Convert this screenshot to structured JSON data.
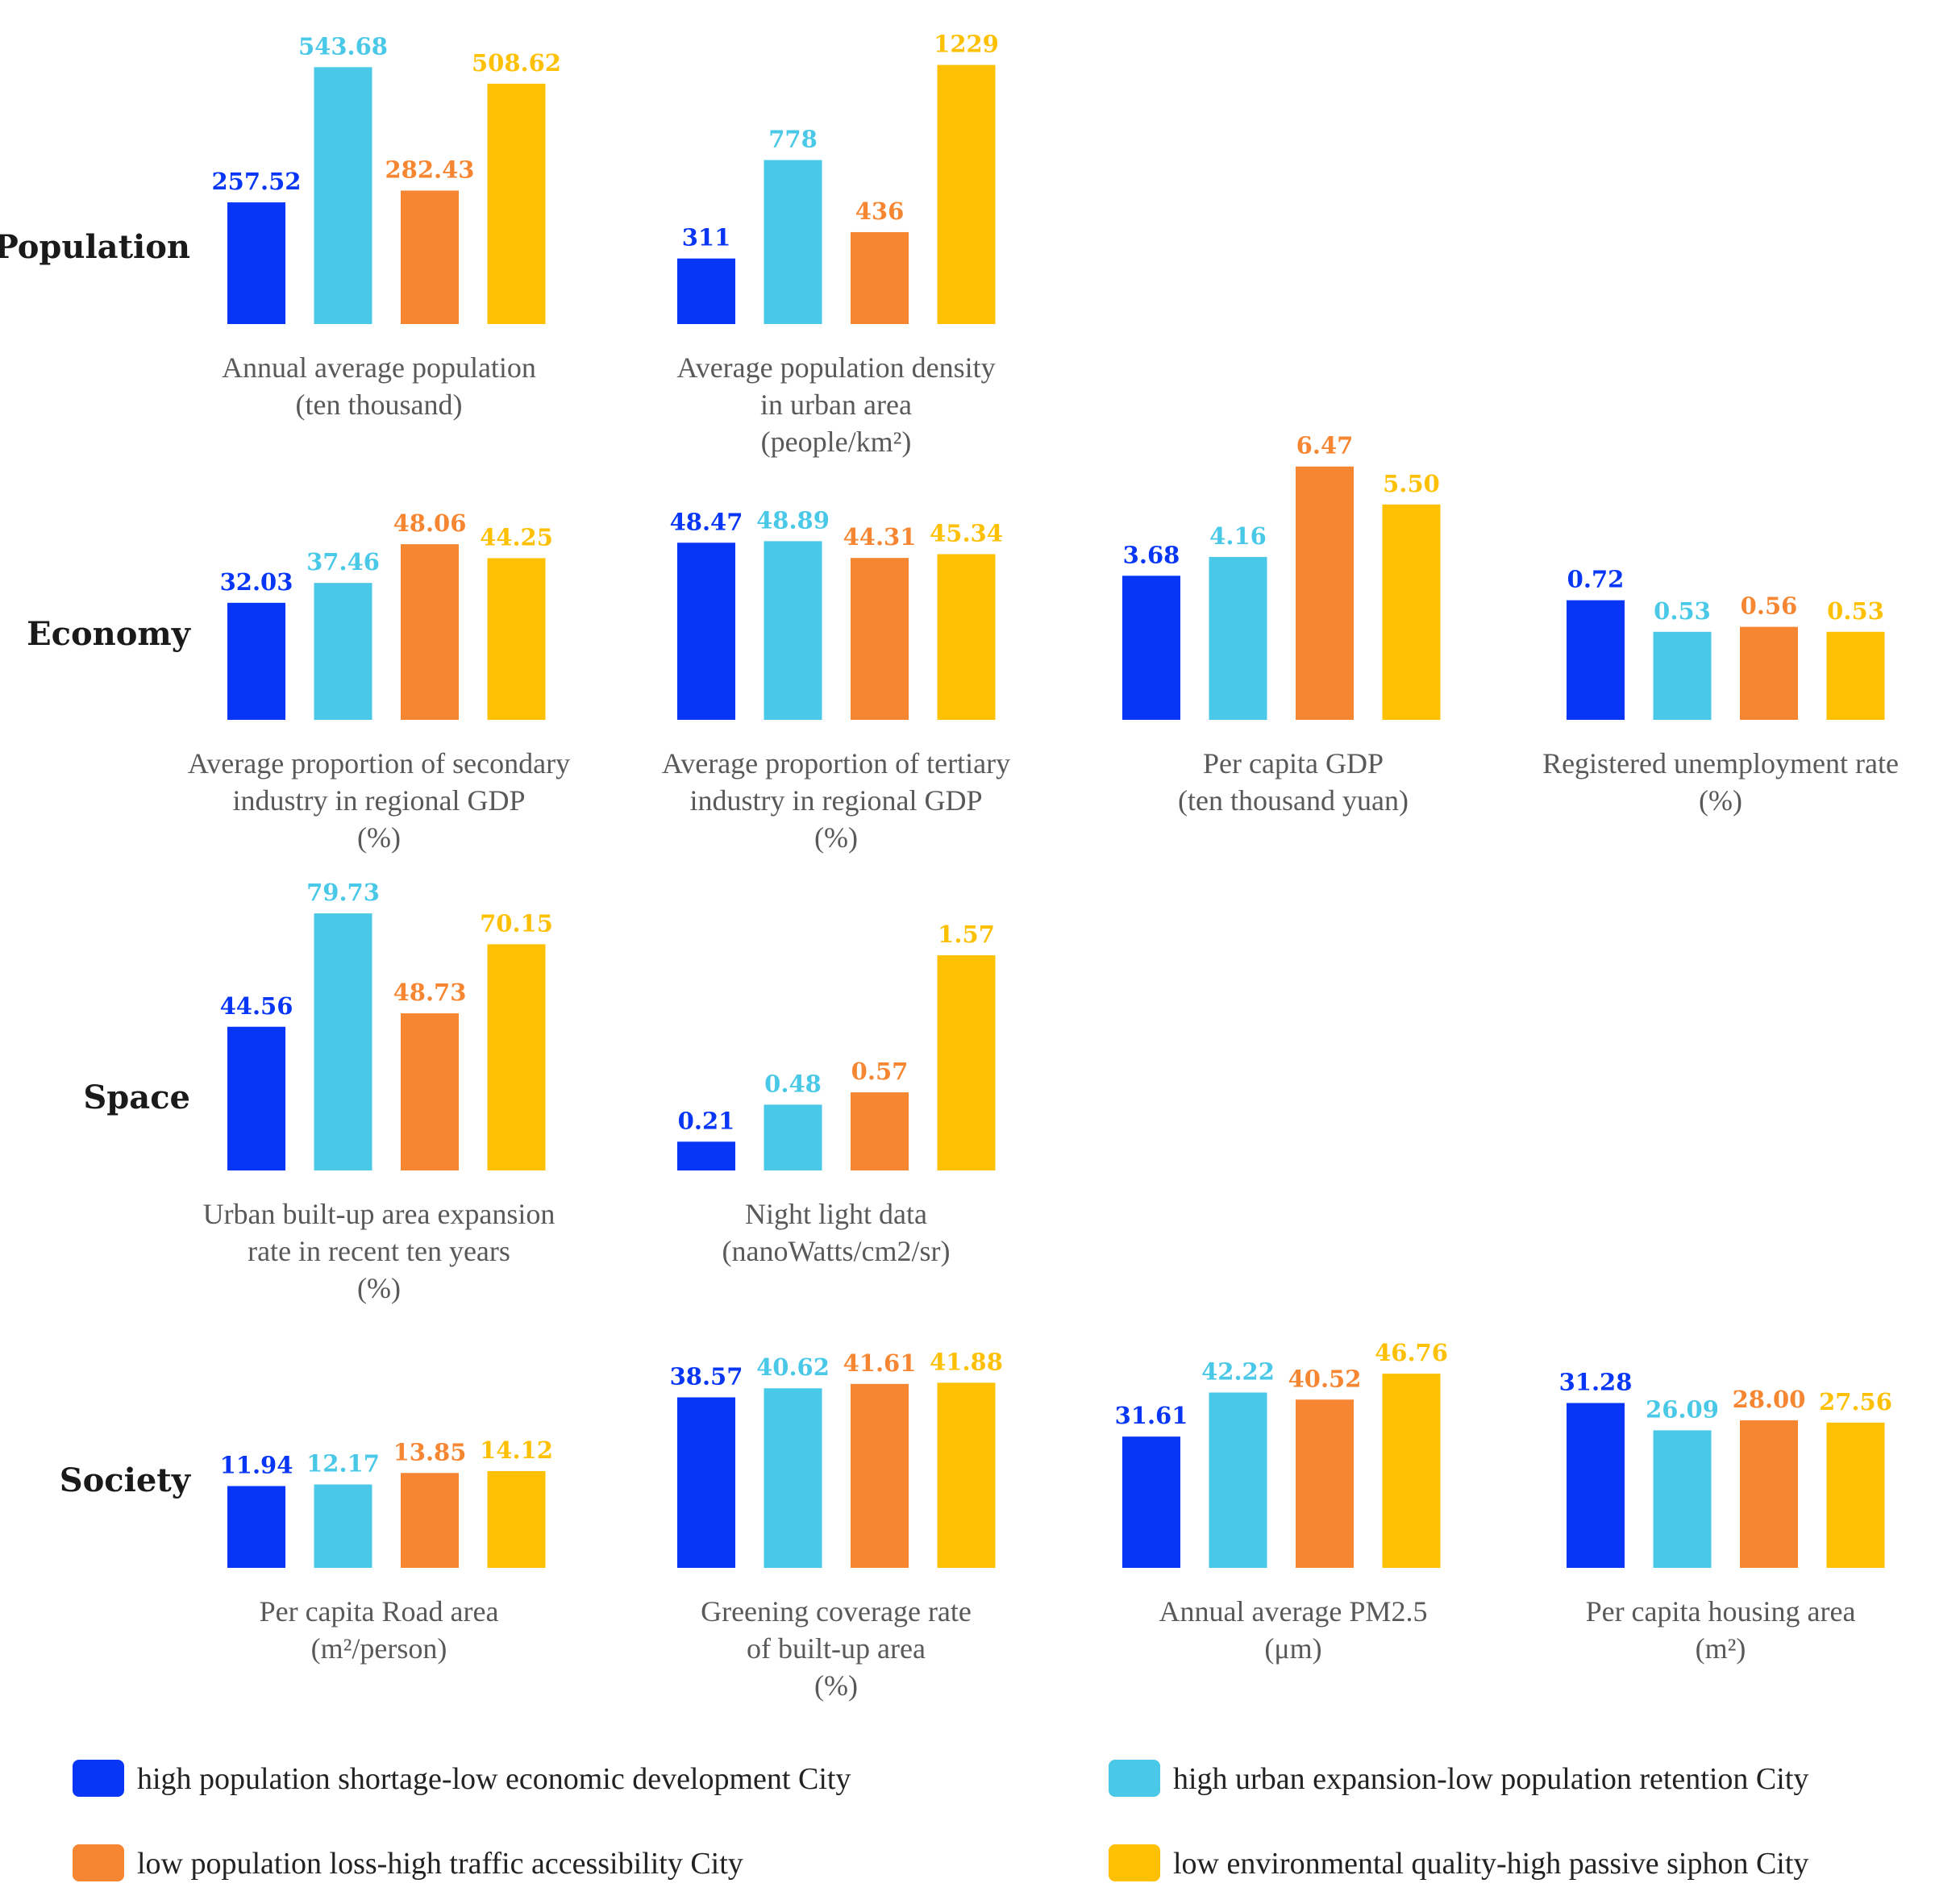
{
  "colors": [
    "#0736F7",
    "#49C8E7",
    "#F68631",
    "#FEC003"
  ],
  "legend": [
    "high population shortage-low economic development City",
    "high urban expansion-low population retention City",
    "low population loss-high traffic accessibility City",
    "low environmental quality-high passive siphon City"
  ],
  "rows": [
    {
      "label": "Population"
    },
    {
      "label": "Economy"
    },
    {
      "label": "Space"
    },
    {
      "label": "Society"
    }
  ],
  "chart_data": [
    {
      "type": "bar",
      "row": 0,
      "col": 0,
      "values": [
        257.52,
        543.68,
        282.43,
        508.62
      ],
      "value_labels": [
        "257.52",
        "543.68",
        "282.43",
        "508.62"
      ],
      "ylim": [
        0,
        580
      ],
      "label": [
        "Annual average population",
        "(ten thousand)"
      ]
    },
    {
      "type": "bar",
      "row": 0,
      "col": 1,
      "values": [
        311,
        778,
        436,
        1229
      ],
      "value_labels": [
        "311",
        "778",
        "436",
        "1229"
      ],
      "ylim": [
        0,
        1300
      ],
      "label": [
        "Average population density",
        "in urban area",
        "(people/km²)"
      ]
    },
    {
      "type": "bar",
      "row": 1,
      "col": 0,
      "values": [
        32.03,
        37.46,
        48.06,
        44.25
      ],
      "value_labels": [
        "32.03",
        "37.46",
        "48.06",
        "44.25"
      ],
      "ylim": [
        0,
        75
      ],
      "label": [
        "Average proportion of secondary",
        "industry in regional GDP",
        "(%)"
      ]
    },
    {
      "type": "bar",
      "row": 1,
      "col": 1,
      "values": [
        48.47,
        48.89,
        44.31,
        45.34
      ],
      "value_labels": [
        "48.47",
        "48.89",
        "44.31",
        "45.34"
      ],
      "ylim": [
        0,
        75
      ],
      "label": [
        "Average proportion of tertiary",
        "industry in regional GDP",
        "(%)"
      ]
    },
    {
      "type": "bar",
      "row": 1,
      "col": 2,
      "values": [
        3.68,
        4.16,
        6.47,
        5.5
      ],
      "value_labels": [
        "3.68",
        "4.16",
        "6.47",
        "5.50"
      ],
      "ylim": [
        0,
        7
      ],
      "label": [
        "Per capita GDP",
        "(ten thousand yuan)"
      ]
    },
    {
      "type": "bar",
      "row": 1,
      "col": 3,
      "values": [
        0.72,
        0.53,
        0.56,
        0.53
      ],
      "value_labels": [
        "0.72",
        "0.53",
        "0.56",
        "0.53"
      ],
      "ylim": [
        0,
        1.65
      ],
      "label": [
        "Registered unemployment rate",
        "(%)"
      ]
    },
    {
      "type": "bar",
      "row": 2,
      "col": 0,
      "values": [
        44.56,
        79.73,
        48.73,
        70.15
      ],
      "value_labels": [
        "44.56",
        "79.73",
        "48.73",
        "70.15"
      ],
      "ylim": [
        0,
        85
      ],
      "label": [
        "Urban built-up area expansion",
        "rate in recent ten years",
        "(%)"
      ]
    },
    {
      "type": "bar",
      "row": 2,
      "col": 1,
      "values": [
        0.21,
        0.48,
        0.57,
        1.57
      ],
      "value_labels": [
        "0.21",
        "0.48",
        "0.57",
        "1.57"
      ],
      "ylim": [
        0,
        2.0
      ],
      "label": [
        "Night light data",
        "(nanoWatts/cm2/sr)"
      ]
    },
    {
      "type": "bar",
      "row": 3,
      "col": 0,
      "values": [
        11.94,
        12.17,
        13.85,
        14.12
      ],
      "value_labels": [
        "11.94",
        "12.17",
        "13.85",
        "14.12"
      ],
      "ylim": [
        0,
        40
      ],
      "label": [
        "Per capita Road area",
        "(m²/person)"
      ]
    },
    {
      "type": "bar",
      "row": 3,
      "col": 1,
      "values": [
        38.57,
        40.62,
        41.61,
        41.88
      ],
      "value_labels": [
        "38.57",
        "40.62",
        "41.61",
        "41.88"
      ],
      "ylim": [
        0,
        62
      ],
      "label": [
        "Greening coverage rate",
        "of built-up area",
        "(%)"
      ]
    },
    {
      "type": "bar",
      "row": 3,
      "col": 2,
      "values": [
        31.61,
        42.22,
        40.52,
        46.76
      ],
      "value_labels": [
        "31.61",
        "42.22",
        "40.52",
        "46.76"
      ],
      "ylim": [
        0,
        66
      ],
      "label": [
        "Annual average PM2.5",
        "(μm)"
      ]
    },
    {
      "type": "bar",
      "row": 3,
      "col": 3,
      "values": [
        31.28,
        26.09,
        28.0,
        27.56
      ],
      "value_labels": [
        "31.28",
        "26.09",
        "28.00",
        "27.56"
      ],
      "ylim": [
        0,
        52
      ],
      "label": [
        "Per capita housing area",
        "(m²)"
      ]
    }
  ]
}
